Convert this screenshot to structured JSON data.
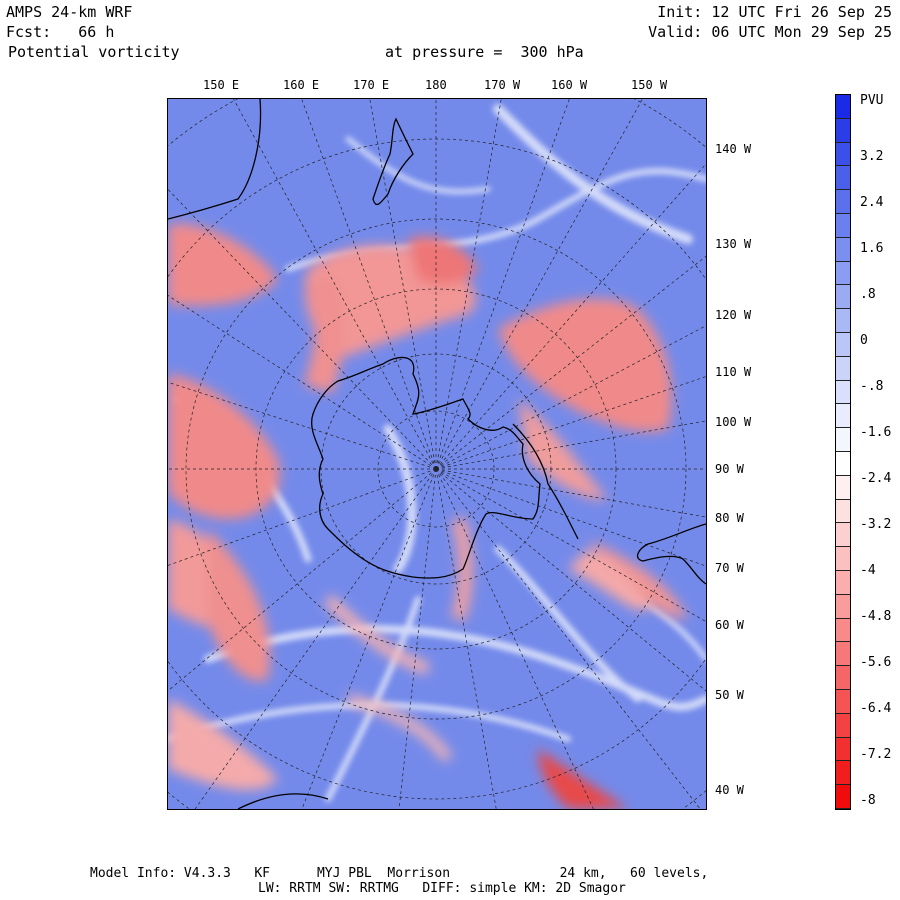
{
  "header": {
    "model": "AMPS 24-km WRF",
    "forecast": "Fcst:   66 h",
    "field": "Potential vorticity",
    "level": "at pressure =  300 hPa",
    "init": "Init: 12 UTC Fri 26 Sep 25",
    "valid": "Valid: 06 UTC Mon 29 Sep 25"
  },
  "map": {
    "top_longitudes": [
      "150 E",
      "160 E",
      "170 E",
      "180",
      "170 W",
      "160 W",
      "150 W"
    ],
    "right_longitudes": [
      "140 W",
      "130 W",
      "120 W",
      "110 W",
      "100 W",
      "90 W",
      "80 W",
      "70 W",
      "60 W",
      "50 W",
      "40 W"
    ]
  },
  "colorbar": {
    "unit": "PVU",
    "labels": [
      "3.2",
      "2.4",
      "1.6",
      ".8",
      "0",
      "-.8",
      "-1.6",
      "-2.4",
      "-3.2",
      "-4",
      "-4.8",
      "-5.6",
      "-6.4",
      "-7.2",
      "-8"
    ],
    "colors": [
      "#1a2be8",
      "#2a3de6",
      "#3a50e8",
      "#4a60ea",
      "#5a70ec",
      "#6a80ee",
      "#7a8ff0",
      "#8a9df2",
      "#9aabf4",
      "#aab9f6",
      "#bac6f8",
      "#cad3fa",
      "#dae0fc",
      "#e8ecfd",
      "#f4f6fe",
      "#ffffff",
      "#fef0f0",
      "#fde0e0",
      "#fcd0d0",
      "#fbc0c0",
      "#faaeae",
      "#f99c9c",
      "#f88a8a",
      "#f77878",
      "#f66666",
      "#f55454",
      "#f44242",
      "#f33030",
      "#f21e1e",
      "#f00c0c"
    ]
  },
  "footer": {
    "line1": "Model Info: V4.3.3   KF      MYJ PBL  Morrison              24 km,   60 levels,",
    "line2": "LW: RRTM SW: RRTMG   DIFF: simple KM: 2D Smagor"
  }
}
